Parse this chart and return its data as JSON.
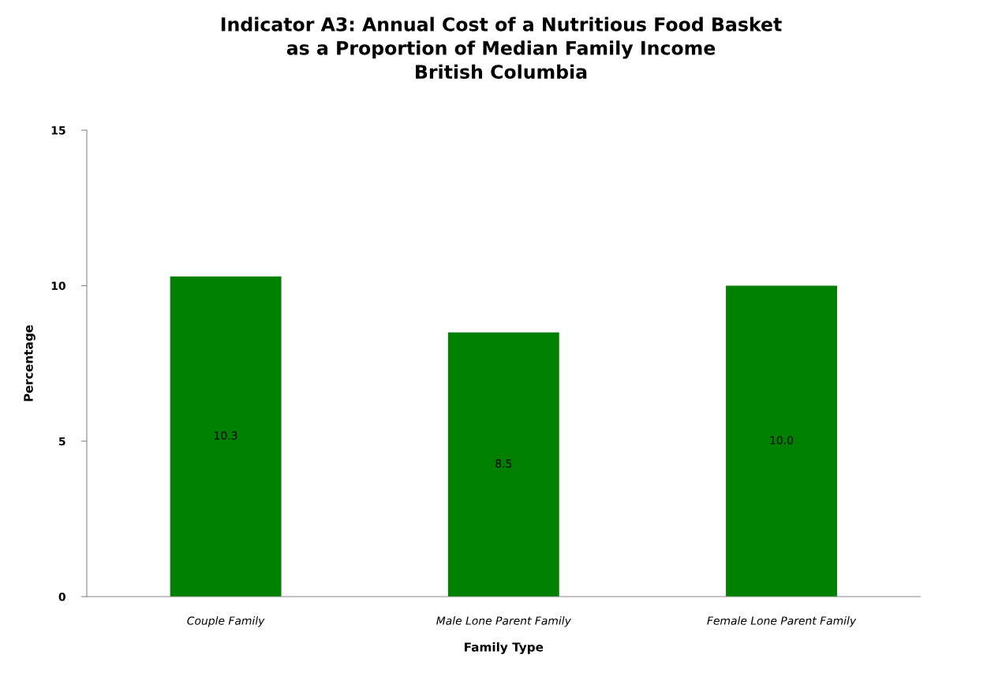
{
  "chart_data": {
    "type": "bar",
    "title": "Indicator A3: Annual Cost of a Nutritious Food Basket\nas a Proportion of Median Family Income\nBritish Columbia",
    "xlabel": "Family Type",
    "ylabel": "Percentage",
    "categories": [
      "Couple Family",
      "Male Lone Parent Family",
      "Female Lone Parent Family"
    ],
    "values": [
      10.3,
      8.5,
      10.0
    ],
    "color": "#008000",
    "value_labels": [
      "10.3",
      "8.5",
      "10.0"
    ],
    "ylim": [
      0,
      15
    ],
    "yticks": [
      0,
      5,
      10,
      15
    ],
    "grid": false,
    "legend": false
  }
}
